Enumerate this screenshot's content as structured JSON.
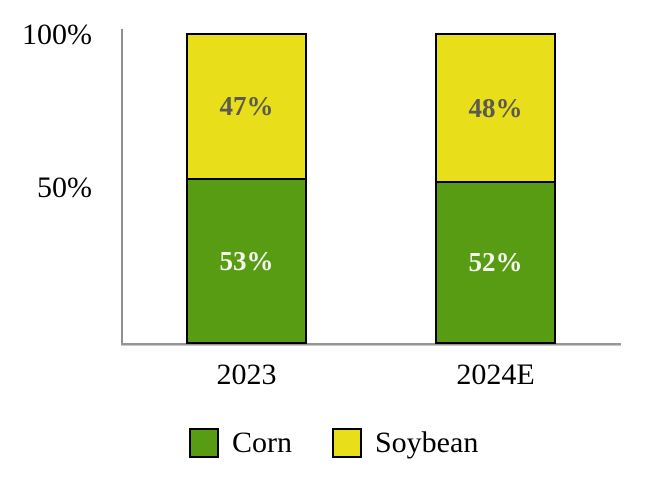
{
  "chart_data": {
    "type": "bar",
    "subtype": "stacked-100-percent-column",
    "categories": [
      "2023",
      "2024E"
    ],
    "series": [
      {
        "name": "Corn",
        "color": "#579C13",
        "border_color": "#000000",
        "label_color": "#F5F5EE",
        "values": [
          53,
          52
        ]
      },
      {
        "name": "Soybean",
        "color": "#E8DE1A",
        "border_color": "#000000",
        "label_color": "#5A5A50",
        "values": [
          47,
          48
        ]
      }
    ],
    "value_suffix": "%",
    "y_axis": {
      "min": 0,
      "max": 100,
      "ticks": [
        {
          "label": "100%",
          "value": 100
        },
        {
          "label": "50%",
          "value": 50
        }
      ]
    },
    "grid": false,
    "legend_position": "bottom",
    "axis_color": "#8F8F8F",
    "title": ""
  }
}
